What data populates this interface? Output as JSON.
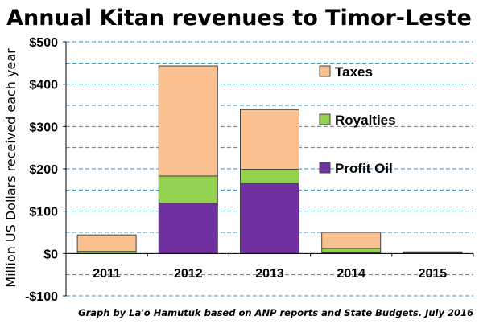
{
  "chart_data": {
    "type": "bar",
    "stacked": true,
    "title": "Annual Kitan revenues to Timor-Leste",
    "ylabel": "Million US Dollars received each year",
    "xlabel": "",
    "categories": [
      "2011",
      "2012",
      "2013",
      "2014",
      "2015"
    ],
    "series": [
      {
        "name": "Profit Oil",
        "color": "#7030a0",
        "values": [
          0,
          119,
          166,
          2,
          1
        ]
      },
      {
        "name": "Royalties",
        "color": "#92d050",
        "values": [
          5,
          64,
          33,
          10,
          2
        ]
      },
      {
        "name": "Taxes",
        "color": "#fac090",
        "values": [
          39,
          260,
          141,
          38,
          1
        ]
      }
    ],
    "legend_order": [
      "Taxes",
      "Royalties",
      "Profit Oil"
    ],
    "legend_position": "inside-right",
    "ylim": [
      -100,
      500
    ],
    "yticks": [
      -100,
      0,
      100,
      200,
      300,
      400,
      500
    ],
    "ytick_labels": [
      "-$100",
      "$0",
      "$100",
      "$200",
      "$300",
      "$400",
      "$500"
    ],
    "grid": "dashed-horizontal",
    "grid_color": "#2e8bb8",
    "annotation": "Graph by La'o Hamutuk based on ANP reports and State Budgets. July 2016"
  }
}
